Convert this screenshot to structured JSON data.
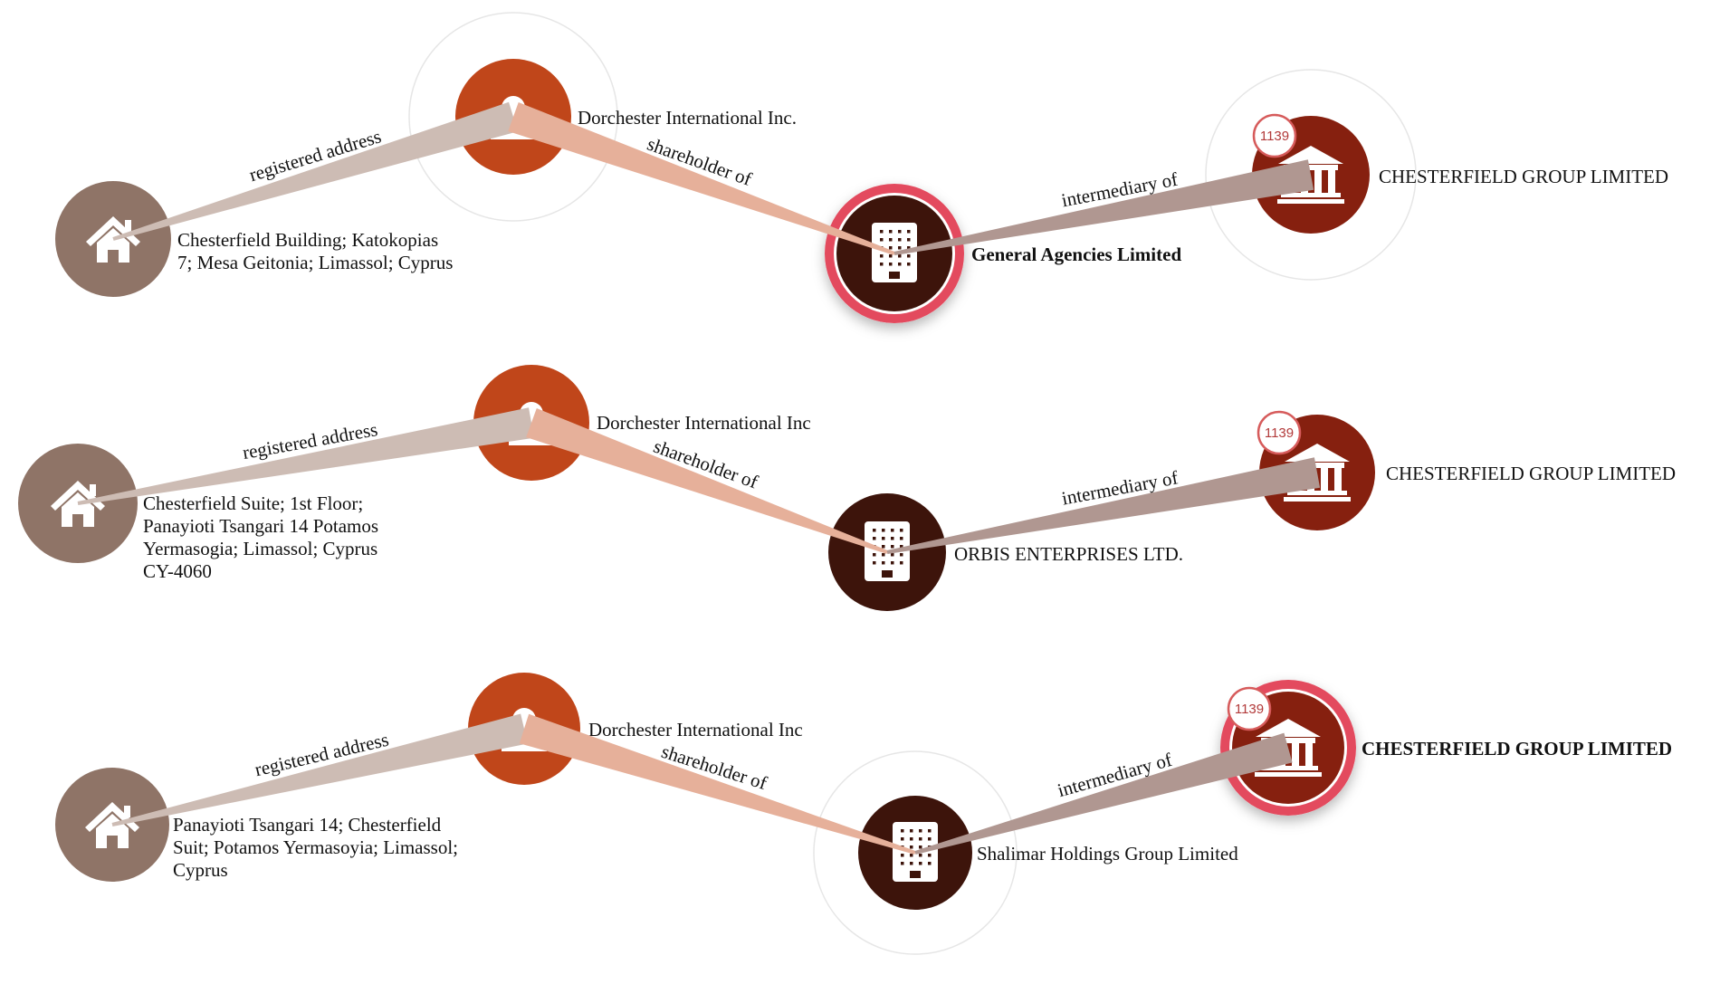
{
  "colors": {
    "address": "#8f7467",
    "officer": "#c0461a",
    "entity": "#3d140b",
    "intermediary": "#86200f",
    "edge_address": "#cdbcb4",
    "edge_shareholder": "#e6b09a",
    "edge_intermediary": "#b09791",
    "highlight_ring": "#e34a5e",
    "badge_ring": "#d65b5b"
  },
  "edge_labels": {
    "registered_address": "registered address",
    "shareholder_of": "shareholder of",
    "intermediary_of": "intermediary of"
  },
  "paths": [
    {
      "address_lines": [
        "Chesterfield Building; Katokopias",
        "7; Mesa Geitonia; Limassol; Cyprus"
      ],
      "officer": "Dorchester International Inc.",
      "entity": "General Agencies Limited",
      "entity_selected": true,
      "intermediary": "CHESTERFIELD GROUP LIMITED",
      "intermediary_selected": false,
      "badge": "1139"
    },
    {
      "address_lines": [
        "Chesterfield Suite; 1st Floor;",
        "Panayioti Tsangari 14 Potamos",
        "Yermasogia; Limassol; Cyprus",
        "CY-4060"
      ],
      "officer": "Dorchester International Inc",
      "entity": "ORBIS ENTERPRISES LTD.",
      "entity_selected": false,
      "intermediary": "CHESTERFIELD GROUP LIMITED",
      "intermediary_selected": false,
      "badge": "1139"
    },
    {
      "address_lines": [
        "Panayioti Tsangari 14; Chesterfield",
        "Suit; Potamos Yermasoyia; Limassol;",
        "Cyprus"
      ],
      "officer": "Dorchester International Inc",
      "entity": "Shalimar Holdings Group Limited",
      "entity_selected": false,
      "intermediary": "CHESTERFIELD GROUP LIMITED",
      "intermediary_selected": true,
      "badge": "1139"
    }
  ]
}
